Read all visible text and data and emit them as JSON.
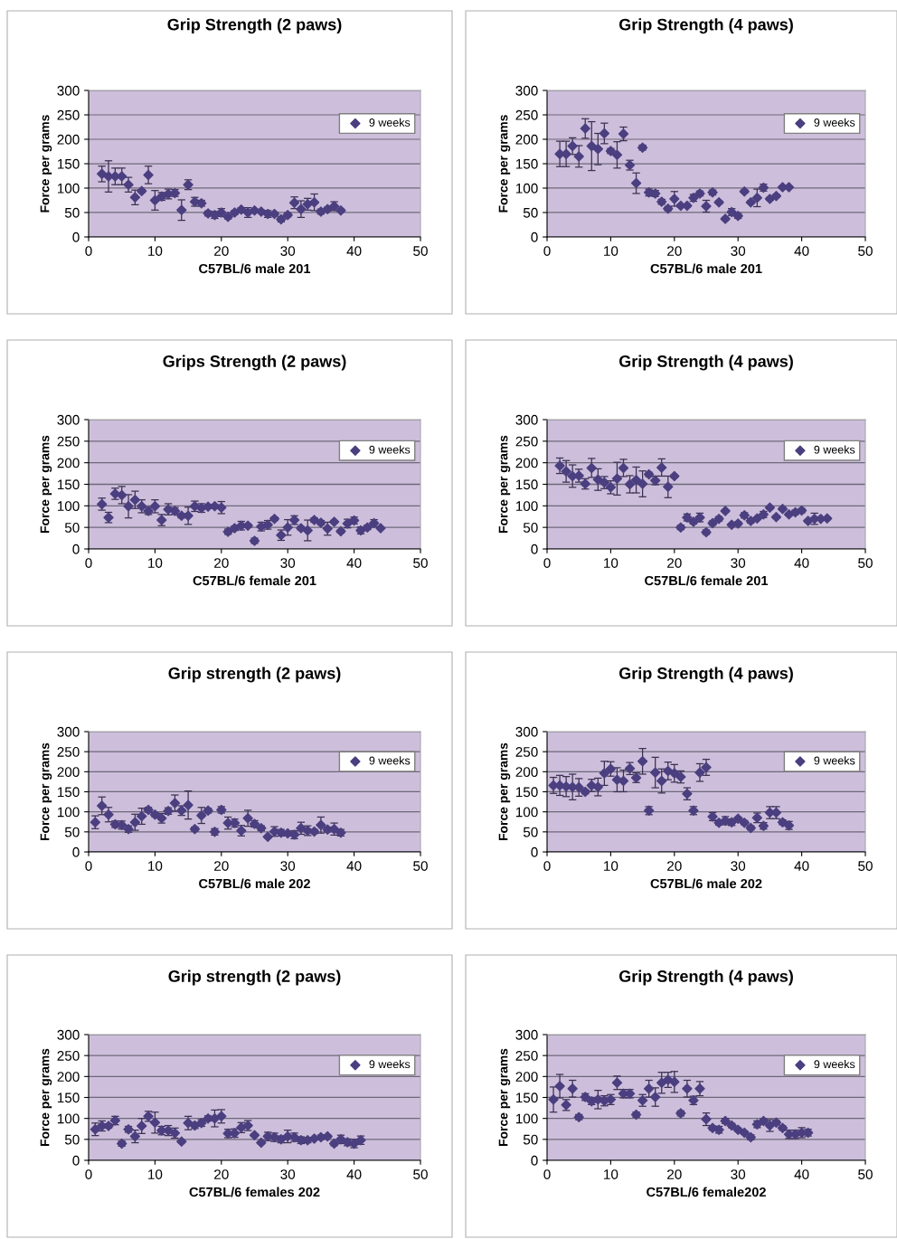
{
  "chart_data": [
    {
      "type": "scatter",
      "title": "Grip Strength (2 paws)",
      "xlabel": "C57BL/6 male 201",
      "ylabel": "Force per grams",
      "xlim": [
        0,
        50
      ],
      "ylim": [
        0,
        300
      ],
      "xticks": [
        0,
        10,
        20,
        30,
        40,
        50
      ],
      "yticks": [
        0,
        50,
        100,
        150,
        200,
        250,
        300
      ],
      "grid": "y",
      "legend": "top right",
      "marker": "diamond",
      "x": [
        2,
        3,
        4,
        5,
        6,
        7,
        8,
        9,
        10,
        11,
        12,
        13,
        14,
        15,
        16,
        17,
        18,
        19,
        20,
        21,
        22,
        23,
        24,
        25,
        26,
        27,
        28,
        29,
        30,
        31,
        32,
        33,
        34,
        35,
        36,
        37,
        38
      ],
      "series": [
        {
          "name": "9 weeks",
          "color": "#4b3f80",
          "values": [
            129,
            124,
            124,
            124,
            107,
            81,
            94,
            127,
            75,
            83,
            88,
            90,
            55,
            107,
            72,
            69,
            48,
            45,
            50,
            41,
            50,
            56,
            50,
            54,
            52,
            47,
            47,
            36,
            45,
            70,
            57,
            67,
            71,
            52,
            57,
            63,
            54
          ],
          "errors": [
            16,
            32,
            17,
            17,
            15,
            15,
            3,
            18,
            20,
            8,
            10,
            7,
            21,
            10,
            9,
            6,
            5,
            7,
            8,
            4,
            4,
            4,
            10,
            3,
            3,
            7,
            4,
            5,
            4,
            12,
            17,
            12,
            17,
            5,
            4,
            9,
            3
          ]
        }
      ]
    },
    {
      "type": "scatter",
      "title": "Grip Strength (4 paws)",
      "xlabel": "C57BL/6 male 201",
      "ylabel": "Force per grams",
      "xlim": [
        0,
        50
      ],
      "ylim": [
        0,
        300
      ],
      "xticks": [
        0,
        10,
        20,
        30,
        40,
        50
      ],
      "yticks": [
        0,
        50,
        100,
        150,
        200,
        250,
        300
      ],
      "grid": "y",
      "legend": "top right",
      "marker": "diamond",
      "x": [
        2,
        3,
        4,
        5,
        6,
        7,
        8,
        9,
        10,
        11,
        12,
        13,
        14,
        15,
        16,
        17,
        18,
        19,
        20,
        21,
        22,
        23,
        24,
        25,
        26,
        27,
        28,
        29,
        30,
        31,
        32,
        33,
        34,
        35,
        36,
        37,
        38
      ],
      "series": [
        {
          "name": "9 weeks",
          "color": "#4b3f80",
          "values": [
            170,
            170,
            186,
            165,
            222,
            186,
            180,
            212,
            176,
            168,
            211,
            147,
            110,
            183,
            91,
            89,
            72,
            58,
            78,
            64,
            64,
            80,
            89,
            63,
            91,
            71,
            37,
            51,
            43,
            93,
            71,
            80,
            101,
            78,
            84,
            102,
            102
          ],
          "errors": [
            26,
            26,
            17,
            22,
            20,
            50,
            32,
            21,
            5,
            27,
            14,
            10,
            21,
            5,
            7,
            6,
            5,
            4,
            15,
            3,
            3,
            7,
            5,
            12,
            5,
            3,
            3,
            7,
            5,
            3,
            3,
            18,
            7,
            3,
            3,
            2,
            2
          ]
        }
      ]
    },
    {
      "type": "scatter",
      "title": "Grips Strength (2 paws)",
      "xlabel": "C57BL/6 female 201",
      "ylabel": "Force per grams",
      "xlim": [
        0,
        50
      ],
      "ylim": [
        0,
        300
      ],
      "xticks": [
        0,
        10,
        20,
        30,
        40,
        50
      ],
      "yticks": [
        0,
        50,
        100,
        150,
        200,
        250,
        300
      ],
      "grid": "y",
      "legend": "top right",
      "marker": "diamond",
      "x": [
        2,
        3,
        4,
        5,
        6,
        7,
        8,
        9,
        10,
        11,
        12,
        13,
        14,
        15,
        16,
        17,
        18,
        19,
        20,
        21,
        22,
        23,
        24,
        25,
        26,
        27,
        28,
        29,
        30,
        31,
        32,
        33,
        34,
        35,
        36,
        37,
        38,
        39,
        40,
        41,
        42,
        43,
        44
      ],
      "series": [
        {
          "name": "9 weeks",
          "color": "#4b3f80",
          "values": [
            104,
            73,
            128,
            125,
            99,
            114,
            99,
            88,
            99,
            67,
            92,
            88,
            77,
            77,
            99,
            95,
            98,
            99,
            96,
            40,
            48,
            54,
            54,
            19,
            52,
            56,
            70,
            32,
            50,
            67,
            48,
            43,
            67,
            61,
            47,
            63,
            41,
            59,
            66,
            43,
            50,
            60,
            48
          ],
          "errors": [
            14,
            12,
            13,
            20,
            27,
            20,
            15,
            8,
            15,
            13,
            13,
            8,
            5,
            20,
            12,
            10,
            4,
            4,
            14,
            6,
            5,
            10,
            4,
            6,
            10,
            10,
            4,
            12,
            18,
            10,
            4,
            24,
            5,
            5,
            15,
            3,
            4,
            10,
            8,
            8,
            5,
            8,
            2
          ]
        }
      ]
    },
    {
      "type": "scatter",
      "title": "Grip Strength (4 paws)",
      "xlabel": "C57BL/6 female 201",
      "ylabel": "Force per grams",
      "xlim": [
        0,
        50
      ],
      "ylim": [
        0,
        300
      ],
      "xticks": [
        0,
        10,
        20,
        30,
        40,
        50
      ],
      "yticks": [
        0,
        50,
        100,
        150,
        200,
        250,
        300
      ],
      "grid": "y",
      "legend": "top right",
      "marker": "diamond",
      "x": [
        2,
        3,
        4,
        5,
        6,
        7,
        8,
        9,
        10,
        11,
        12,
        13,
        14,
        15,
        16,
        17,
        18,
        19,
        20,
        21,
        22,
        23,
        24,
        25,
        26,
        27,
        28,
        29,
        30,
        31,
        32,
        33,
        34,
        35,
        36,
        37,
        38,
        39,
        40,
        41,
        42,
        43,
        44
      ],
      "series": [
        {
          "name": "9 weeks",
          "color": "#4b3f80",
          "values": [
            193,
            180,
            169,
            170,
            151,
            188,
            161,
            154,
            143,
            163,
            188,
            150,
            160,
            151,
            173,
            159,
            189,
            144,
            169,
            50,
            73,
            63,
            73,
            39,
            60,
            70,
            88,
            56,
            59,
            78,
            65,
            71,
            80,
            96,
            74,
            93,
            80,
            85,
            89,
            65,
            70,
            70,
            71
          ],
          "errors": [
            18,
            25,
            26,
            15,
            12,
            22,
            25,
            14,
            15,
            38,
            20,
            20,
            30,
            30,
            5,
            10,
            20,
            25,
            3,
            5,
            8,
            5,
            10,
            5,
            5,
            5,
            3,
            3,
            4,
            6,
            5,
            3,
            7,
            3,
            3,
            3,
            3,
            5,
            5,
            3,
            13,
            3,
            3
          ]
        }
      ]
    },
    {
      "type": "scatter",
      "title": "Grip strength (2 paws)",
      "xlabel": "C57BL/6 male 202",
      "ylabel": "Force per grams",
      "xlim": [
        0,
        50
      ],
      "ylim": [
        0,
        300
      ],
      "xticks": [
        0,
        10,
        20,
        30,
        40,
        50
      ],
      "yticks": [
        0,
        50,
        100,
        150,
        200,
        250,
        300
      ],
      "grid": "y",
      "legend": "top right",
      "marker": "diamond",
      "x": [
        1,
        2,
        3,
        4,
        5,
        6,
        7,
        8,
        9,
        10,
        11,
        12,
        13,
        14,
        15,
        16,
        17,
        18,
        19,
        20,
        21,
        22,
        23,
        24,
        25,
        26,
        27,
        28,
        29,
        30,
        31,
        32,
        33,
        34,
        35,
        36,
        37,
        38
      ],
      "series": [
        {
          "name": "9 weeks",
          "color": "#4b3f80",
          "values": [
            74,
            115,
            93,
            69,
            67,
            57,
            74,
            89,
            105,
            93,
            84,
            102,
            122,
            103,
            117,
            57,
            91,
            103,
            50,
            105,
            72,
            72,
            53,
            84,
            70,
            59,
            38,
            51,
            48,
            46,
            43,
            59,
            53,
            51,
            67,
            56,
            57,
            48
          ],
          "errors": [
            16,
            22,
            18,
            8,
            10,
            8,
            20,
            20,
            6,
            5,
            12,
            8,
            20,
            12,
            35,
            5,
            20,
            6,
            8,
            8,
            15,
            10,
            13,
            20,
            8,
            6,
            3,
            12,
            8,
            5,
            10,
            15,
            12,
            5,
            20,
            6,
            15,
            8
          ]
        }
      ]
    },
    {
      "type": "scatter",
      "title": "Grip Strength (4 paws)",
      "xlabel": "C57BL/6 male 202",
      "ylabel": "Force per grams",
      "xlim": [
        0,
        50
      ],
      "ylim": [
        0,
        300
      ],
      "xticks": [
        0,
        10,
        20,
        30,
        40,
        50
      ],
      "yticks": [
        0,
        50,
        100,
        150,
        200,
        250,
        300
      ],
      "grid": "y",
      "legend": "top right",
      "marker": "diamond",
      "x": [
        1,
        2,
        3,
        4,
        5,
        6,
        7,
        8,
        9,
        10,
        11,
        12,
        13,
        14,
        15,
        16,
        17,
        18,
        19,
        20,
        21,
        22,
        23,
        24,
        25,
        26,
        27,
        28,
        29,
        30,
        31,
        32,
        33,
        34,
        35,
        36,
        37,
        38
      ],
      "series": [
        {
          "name": "9 weeks",
          "color": "#4b3f80",
          "values": [
            166,
            166,
            163,
            162,
            161,
            150,
            166,
            162,
            196,
            207,
            180,
            177,
            208,
            185,
            226,
            103,
            198,
            177,
            202,
            196,
            187,
            145,
            103,
            198,
            211,
            88,
            73,
            78,
            74,
            83,
            73,
            60,
            85,
            65,
            98,
            98,
            74,
            66
          ],
          "errors": [
            20,
            25,
            25,
            32,
            22,
            5,
            15,
            22,
            30,
            18,
            30,
            27,
            15,
            12,
            32,
            10,
            38,
            30,
            22,
            22,
            15,
            15,
            10,
            22,
            20,
            10,
            6,
            10,
            8,
            4,
            5,
            5,
            12,
            8,
            15,
            15,
            6,
            10
          ]
        }
      ]
    },
    {
      "type": "scatter",
      "title": "Grip strength (2 paws)",
      "xlabel": "C57BL/6 females 202",
      "ylabel": "Force per grams",
      "xlim": [
        0,
        50
      ],
      "ylim": [
        0,
        300
      ],
      "xticks": [
        0,
        10,
        20,
        30,
        40,
        50
      ],
      "yticks": [
        0,
        50,
        100,
        150,
        200,
        250,
        300
      ],
      "grid": "y",
      "legend": "top right",
      "marker": "diamond",
      "x": [
        1,
        2,
        3,
        4,
        5,
        6,
        7,
        8,
        9,
        10,
        11,
        12,
        13,
        14,
        15,
        16,
        17,
        18,
        19,
        20,
        21,
        22,
        23,
        24,
        25,
        26,
        27,
        28,
        29,
        30,
        31,
        32,
        33,
        34,
        35,
        36,
        37,
        38,
        39,
        40,
        41
      ],
      "series": [
        {
          "name": "9 weeks",
          "color": "#4b3f80",
          "values": [
            74,
            82,
            82,
            95,
            40,
            74,
            57,
            82,
            105,
            90,
            71,
            71,
            65,
            45,
            89,
            83,
            89,
            100,
            100,
            105,
            64,
            65,
            78,
            83,
            60,
            42,
            57,
            55,
            50,
            57,
            55,
            48,
            48,
            52,
            55,
            57,
            40,
            50,
            43,
            40,
            48
          ],
          "errors": [
            15,
            12,
            5,
            10,
            6,
            7,
            15,
            18,
            12,
            25,
            10,
            12,
            12,
            3,
            16,
            7,
            8,
            6,
            20,
            16,
            10,
            10,
            12,
            12,
            3,
            3,
            10,
            10,
            8,
            15,
            10,
            8,
            6,
            3,
            5,
            3,
            5,
            10,
            8,
            10,
            10
          ]
        }
      ]
    },
    {
      "type": "scatter",
      "title": "Grip Strength (4 paws)",
      "xlabel": "C57BL/6 female202",
      "ylabel": "Force per grams",
      "xlim": [
        0,
        50
      ],
      "ylim": [
        0,
        300
      ],
      "xticks": [
        0,
        10,
        20,
        30,
        40,
        50
      ],
      "yticks": [
        0,
        50,
        100,
        150,
        200,
        250,
        300
      ],
      "grid": "y",
      "legend": "top right",
      "marker": "diamond",
      "x": [
        1,
        2,
        3,
        4,
        5,
        6,
        7,
        8,
        9,
        10,
        11,
        12,
        13,
        14,
        15,
        16,
        17,
        18,
        19,
        20,
        21,
        22,
        23,
        24,
        25,
        26,
        27,
        28,
        29,
        30,
        31,
        32,
        33,
        34,
        35,
        36,
        37,
        38,
        39,
        40,
        41
      ],
      "series": [
        {
          "name": "9 weeks",
          "color": "#4b3f80",
          "values": [
            145,
            177,
            132,
            171,
            103,
            151,
            141,
            145,
            142,
            145,
            185,
            159,
            159,
            109,
            143,
            171,
            151,
            185,
            192,
            187,
            112,
            171,
            143,
            171,
            98,
            77,
            73,
            94,
            83,
            73,
            66,
            55,
            86,
            94,
            83,
            90,
            77,
            62,
            62,
            66,
            66
          ],
          "errors": [
            30,
            28,
            13,
            20,
            6,
            8,
            8,
            22,
            12,
            12,
            16,
            10,
            10,
            6,
            14,
            20,
            22,
            25,
            18,
            25,
            6,
            20,
            10,
            17,
            15,
            5,
            8,
            6,
            5,
            4,
            4,
            6,
            8,
            5,
            14,
            5,
            5,
            10,
            10,
            12,
            8
          ]
        }
      ]
    }
  ]
}
